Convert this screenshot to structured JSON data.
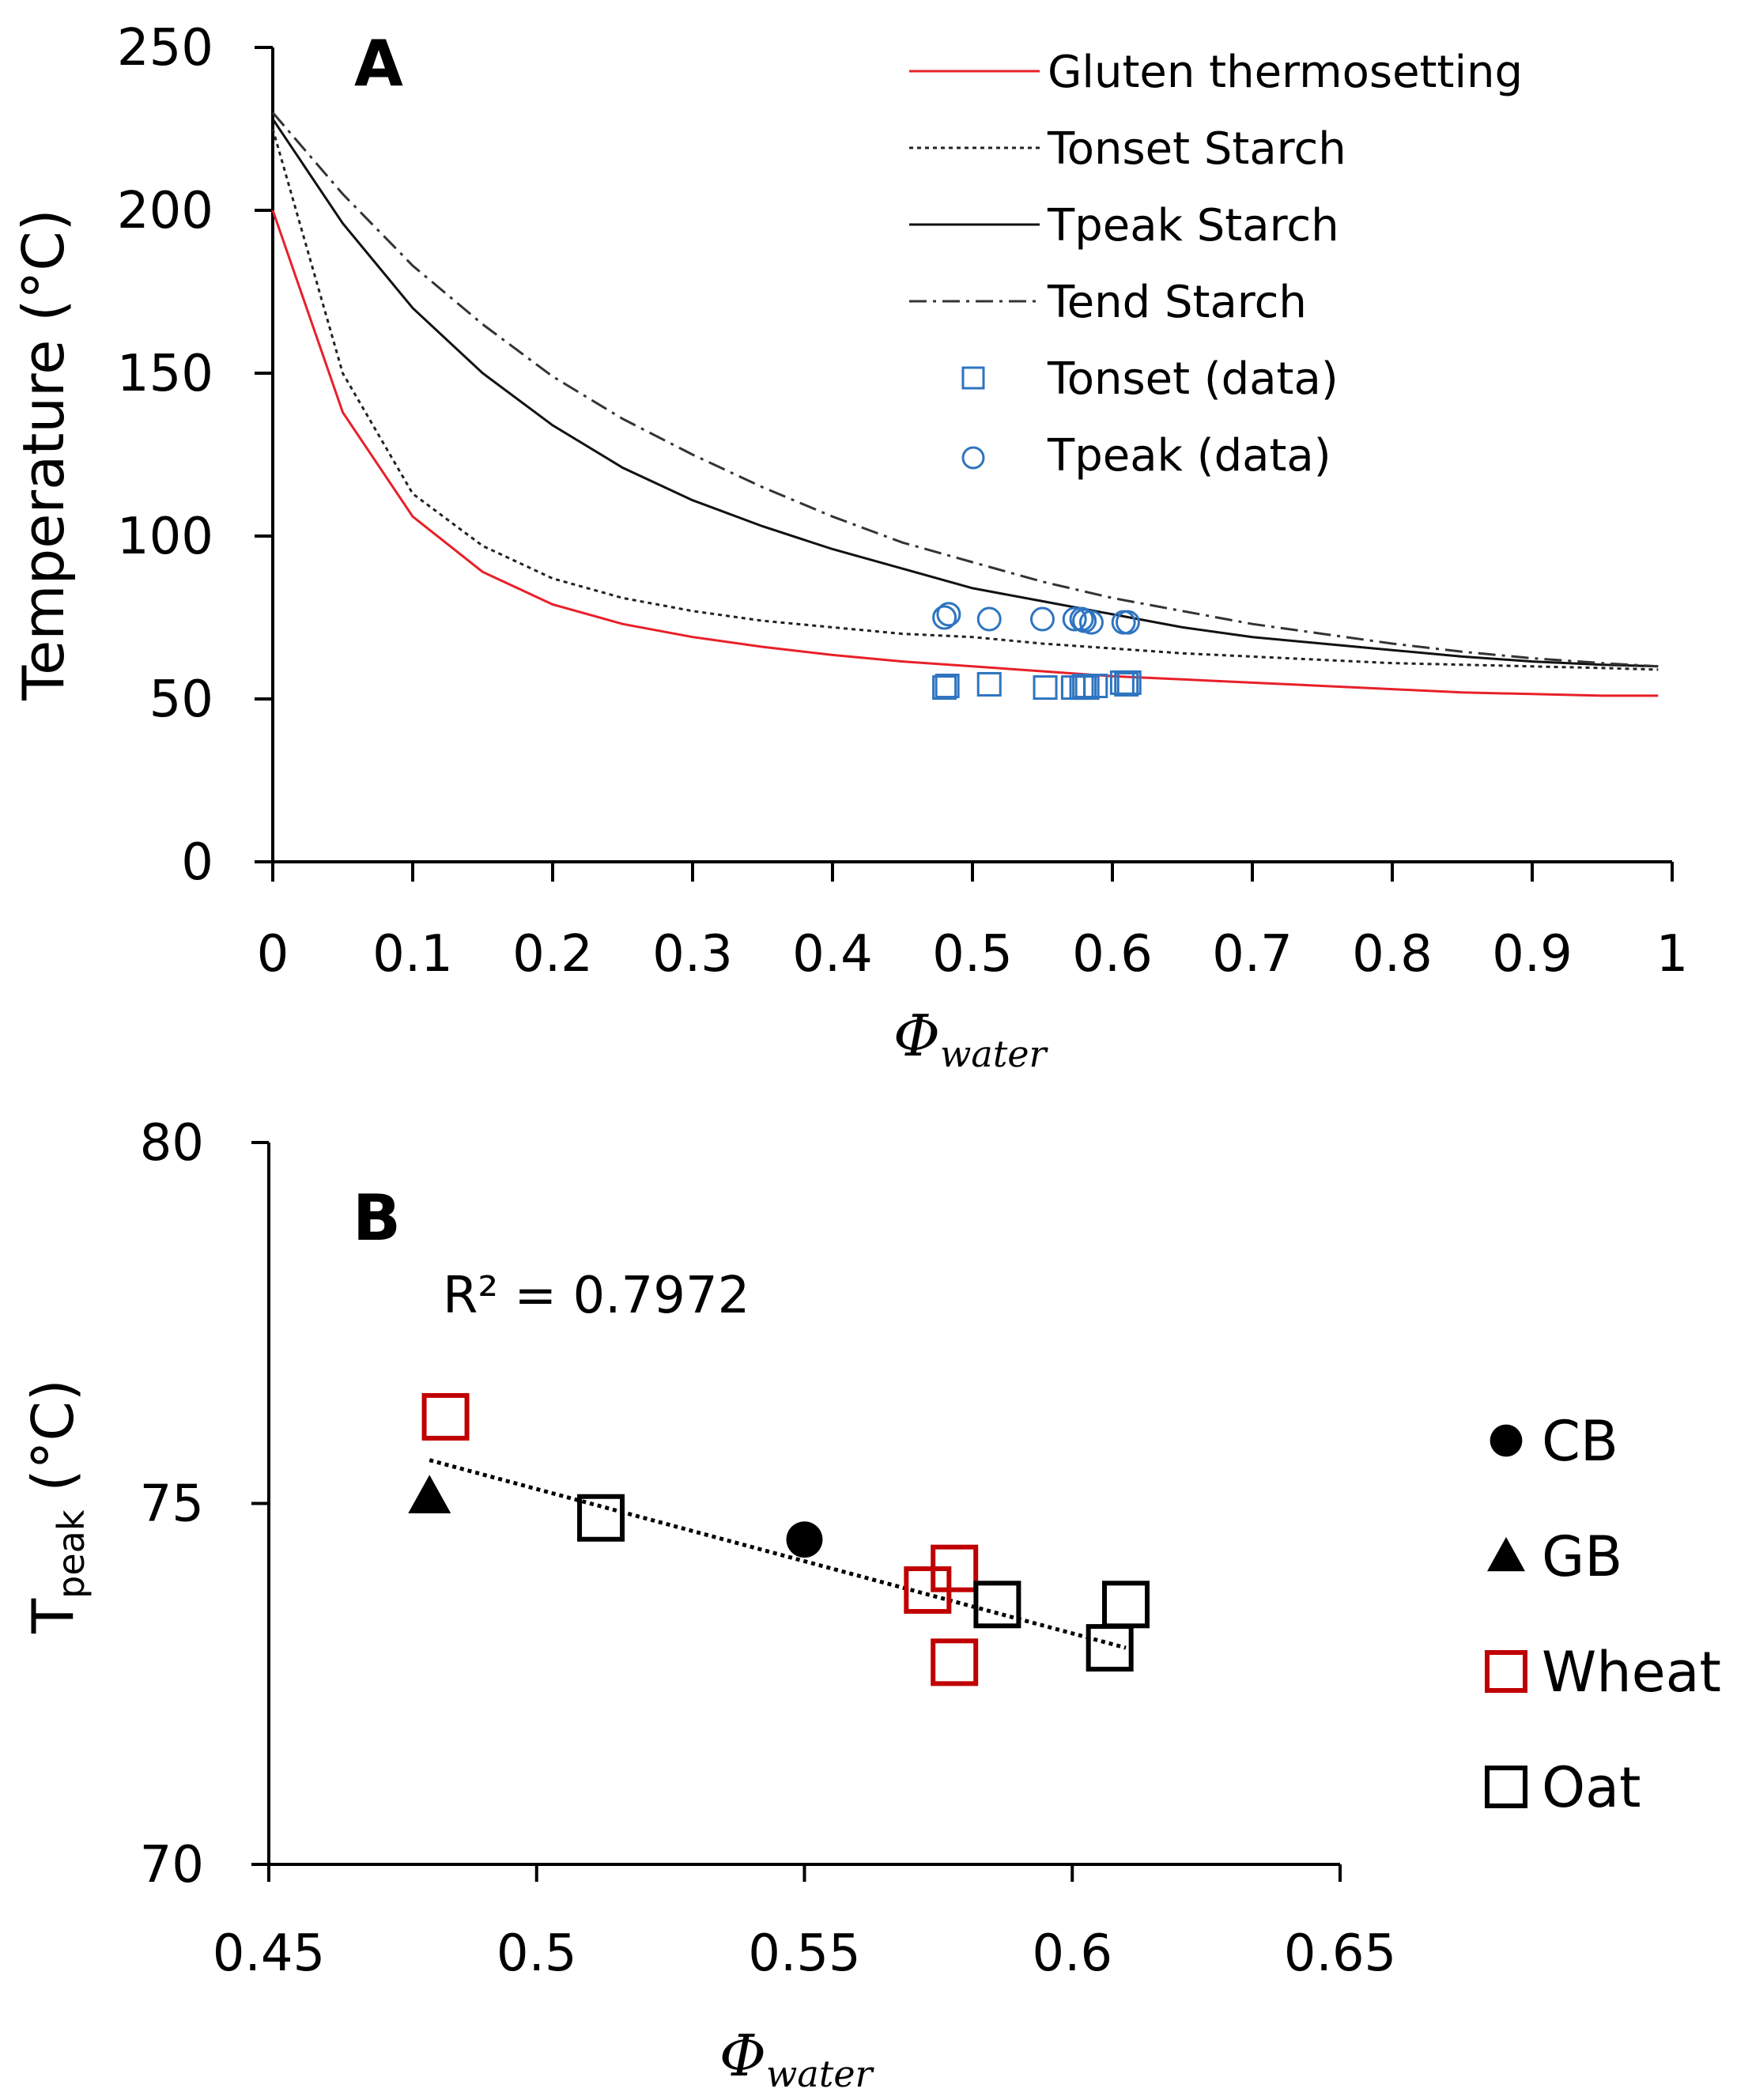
{
  "chart_data": [
    {
      "panel": "A",
      "type": "line",
      "ylabel": "Temperature (°C)",
      "xlabel_symbol": "Φ",
      "xlabel_sub": "water",
      "xlim": [
        0,
        1
      ],
      "ylim": [
        0,
        250
      ],
      "xticks": [
        0,
        0.1,
        0.2,
        0.3,
        0.4,
        0.5,
        0.6,
        0.7,
        0.8,
        0.9,
        1
      ],
      "xtick_labels": [
        "0",
        "0.1",
        "0.2",
        "0.3",
        "0.4",
        "0.5",
        "0.6",
        "0.7",
        "0.8",
        "0.9",
        "1"
      ],
      "yticks": [
        0,
        50,
        100,
        150,
        200,
        250
      ],
      "ytick_labels": [
        "0",
        "50",
        "100",
        "150",
        "200",
        "250"
      ],
      "legend_position": "top-right",
      "curves": [
        {
          "name": "Gluten thermosetting",
          "color": "#e8202a",
          "dash": "solid",
          "x": [
            0,
            0.05,
            0.1,
            0.15,
            0.2,
            0.25,
            0.3,
            0.35,
            0.4,
            0.45,
            0.5,
            0.55,
            0.6,
            0.65,
            0.7,
            0.75,
            0.8,
            0.85,
            0.9,
            0.95,
            0.99
          ],
          "y": [
            200,
            138,
            106,
            89,
            79,
            73,
            69,
            66,
            63.5,
            61.5,
            60,
            58.5,
            57,
            56,
            55,
            54,
            53,
            52,
            51.5,
            51,
            51
          ]
        },
        {
          "name": "Tonset Starch",
          "color": "#222222",
          "dash": "dotted",
          "x": [
            0,
            0.05,
            0.1,
            0.15,
            0.2,
            0.25,
            0.3,
            0.35,
            0.4,
            0.45,
            0.5,
            0.55,
            0.6,
            0.65,
            0.7,
            0.75,
            0.8,
            0.85,
            0.9,
            0.95,
            0.99
          ],
          "y": [
            225,
            150,
            113,
            97,
            87,
            81,
            77,
            74,
            72,
            70,
            69,
            67,
            65.5,
            64,
            63,
            62,
            61,
            60.5,
            60,
            59.5,
            59
          ]
        },
        {
          "name": "Tpeak Starch",
          "color": "#111111",
          "dash": "solid",
          "x": [
            0,
            0.05,
            0.1,
            0.15,
            0.2,
            0.25,
            0.3,
            0.35,
            0.4,
            0.45,
            0.5,
            0.55,
            0.6,
            0.65,
            0.7,
            0.75,
            0.8,
            0.85,
            0.9,
            0.95,
            0.99
          ],
          "y": [
            228,
            196,
            170,
            150,
            134,
            121,
            111,
            103,
            96,
            90,
            84,
            80,
            76,
            72,
            69,
            67,
            65,
            63,
            61.5,
            60.5,
            60
          ]
        },
        {
          "name": "Tend Starch",
          "color": "#333333",
          "dash": "dashdot",
          "x": [
            0,
            0.05,
            0.1,
            0.15,
            0.2,
            0.25,
            0.3,
            0.35,
            0.4,
            0.45,
            0.5,
            0.55,
            0.6,
            0.65,
            0.7,
            0.75,
            0.8,
            0.85,
            0.9,
            0.95,
            0.99
          ],
          "y": [
            230,
            205,
            183,
            165,
            149,
            136,
            125,
            115,
            106,
            98,
            92,
            86,
            81,
            77,
            73,
            70,
            67,
            64.5,
            62.5,
            61,
            60
          ]
        }
      ],
      "scatter": [
        {
          "name": "Tonset (data)",
          "marker": "square",
          "color": "#2e74c0",
          "x": [
            0.48,
            0.482,
            0.512,
            0.552,
            0.572,
            0.578,
            0.58,
            0.582,
            0.588,
            0.607,
            0.61,
            0.612
          ],
          "y": [
            53.5,
            54,
            54.5,
            53.5,
            53.5,
            53.5,
            54,
            53.5,
            54,
            55,
            54.5,
            55
          ]
        },
        {
          "name": "Tpeak (data)",
          "marker": "circle",
          "color": "#2e74c0",
          "x": [
            0.48,
            0.483,
            0.512,
            0.55,
            0.573,
            0.578,
            0.58,
            0.585,
            0.608,
            0.611
          ],
          "y": [
            75,
            76,
            74.5,
            74.5,
            74.5,
            74.5,
            74,
            73.5,
            73.5,
            73.5
          ]
        }
      ]
    },
    {
      "panel": "B",
      "type": "scatter",
      "ylabel_main": "T",
      "ylabel_sub": "peak",
      "ylabel_unit": " (°C)",
      "xlabel_symbol": "Φ",
      "xlabel_sub": "water",
      "xlim": [
        0.45,
        0.65
      ],
      "ylim": [
        70,
        80
      ],
      "xticks": [
        0.45,
        0.5,
        0.55,
        0.6,
        0.65
      ],
      "xtick_labels": [
        "0.45",
        "0.5",
        "0.55",
        "0.6",
        "0.65"
      ],
      "yticks": [
        70,
        75,
        80
      ],
      "ytick_labels": [
        "70",
        "75",
        "80"
      ],
      "annotation": "R² = 0.7972",
      "trendline": {
        "x": [
          0.48,
          0.61
        ],
        "y": [
          75.6,
          73.0
        ]
      },
      "legend_position": "right",
      "series": [
        {
          "name": "CB",
          "marker": "filled-circle",
          "color": "#000000",
          "x": [
            0.55
          ],
          "y": [
            74.5
          ]
        },
        {
          "name": "GB",
          "marker": "filled-triangle",
          "color": "#000000",
          "x": [
            0.48
          ],
          "y": [
            75.1
          ]
        },
        {
          "name": "Wheat",
          "marker": "open-square",
          "color": "#c00000",
          "x": [
            0.483,
            0.573,
            0.578,
            0.578
          ],
          "y": [
            76.2,
            73.8,
            74.1,
            72.8
          ]
        },
        {
          "name": "Oat",
          "marker": "open-square",
          "color": "#000000",
          "x": [
            0.512,
            0.586,
            0.607,
            0.61
          ],
          "y": [
            74.8,
            73.6,
            73.0,
            73.6
          ]
        }
      ]
    }
  ],
  "panels": {
    "a_label": "A",
    "b_label": "B"
  }
}
